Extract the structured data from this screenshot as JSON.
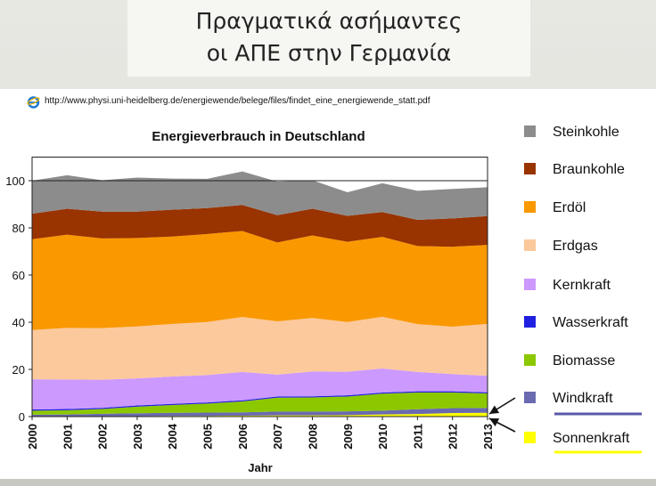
{
  "slide": {
    "title_line1": "Πραγματικά ασήμαντες",
    "title_line2": "οι ΑΠΕ στην Γερμανία",
    "source_url": "http://www.physi.uni-heidelberg.de/energiewende/belege/files/findet_eine_energiewende_statt.pdf"
  },
  "chart_data": {
    "type": "area",
    "stacked": true,
    "title": "Energieverbrauch in Deutschland",
    "xlabel": "Jahr",
    "ylabel": "",
    "x": [
      "2000",
      "2001",
      "2002",
      "2003",
      "2004",
      "2005",
      "2006",
      "2007",
      "2008",
      "2009",
      "2010",
      "2011",
      "2012",
      "2013"
    ],
    "ylim": [
      0,
      110
    ],
    "yticks": [
      0,
      20,
      40,
      60,
      80,
      100
    ],
    "series": [
      {
        "name": "Sonnenkraft",
        "color": "#ffff00",
        "values": [
          0.1,
          0.1,
          0.2,
          0.2,
          0.3,
          0.3,
          0.4,
          0.5,
          0.5,
          0.6,
          0.9,
          1.1,
          1.5,
          1.6
        ]
      },
      {
        "name": "Windkraft",
        "color": "#6a6ab0",
        "values": [
          0.7,
          0.8,
          1.0,
          1.2,
          1.3,
          1.4,
          1.4,
          1.6,
          1.6,
          1.6,
          1.6,
          2.0,
          2.1,
          2.1
        ]
      },
      {
        "name": "Biomasse",
        "color": "#8cc800",
        "values": [
          1.7,
          1.8,
          2.0,
          2.8,
          3.3,
          3.8,
          4.6,
          5.9,
          6.0,
          6.3,
          7.2,
          7.1,
          6.6,
          6.1
        ]
      },
      {
        "name": "Wasserkraft",
        "color": "#2020e0",
        "values": [
          0.5,
          0.5,
          0.5,
          0.5,
          0.5,
          0.5,
          0.5,
          0.5,
          0.5,
          0.5,
          0.5,
          0.5,
          0.5,
          0.5
        ]
      },
      {
        "name": "Kernkraft",
        "color": "#cc99ff",
        "values": [
          12.8,
          12.5,
          11.9,
          11.5,
          11.6,
          11.6,
          12.0,
          9.3,
          10.5,
          10.0,
          10.2,
          8.2,
          7.3,
          7.0
        ]
      },
      {
        "name": "Erdgas",
        "color": "#fcc99c",
        "values": [
          20.9,
          21.9,
          21.9,
          22.0,
          22.3,
          22.5,
          23.3,
          22.6,
          22.7,
          21.1,
          21.9,
          20.3,
          20.1,
          22.0
        ]
      },
      {
        "name": "Erdöl",
        "color": "#fa9800",
        "values": [
          38.5,
          39.5,
          38.0,
          37.5,
          37.0,
          37.3,
          36.5,
          33.4,
          35.0,
          34.0,
          33.9,
          33.1,
          33.9,
          33.5
        ]
      },
      {
        "name": "Braunkohle",
        "color": "#993300",
        "values": [
          10.8,
          11.0,
          11.4,
          11.2,
          11.4,
          11.0,
          11.0,
          11.6,
          11.3,
          11.0,
          10.5,
          11.1,
          12.0,
          12.2
        ]
      },
      {
        "name": "Steinkohle",
        "color": "#8c8c8c",
        "values": [
          14.0,
          14.2,
          13.3,
          14.4,
          13.2,
          12.4,
          14.2,
          14.2,
          12.1,
          10.0,
          12.2,
          12.3,
          12.5,
          12.2
        ]
      }
    ],
    "legend": [
      "Steinkohle",
      "Braunkohle",
      "Erdöl",
      "Erdgas",
      "Kernkraft",
      "Wasserkraft",
      "Biomasse",
      "Windkraft",
      "Sonnenkraft"
    ],
    "legend_position": "right",
    "annotations": [
      "arrow to Windkraft",
      "arrow to Sonnenkraft"
    ]
  }
}
